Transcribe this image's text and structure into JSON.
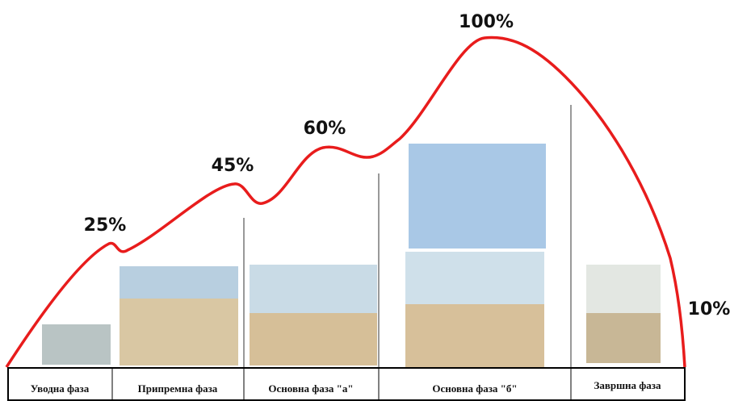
{
  "peaks": [
    {
      "label": "25%"
    },
    {
      "label": "45%"
    },
    {
      "label": "60%"
    },
    {
      "label": "100%"
    },
    {
      "label": "10%"
    }
  ],
  "phases": [
    "Уводна фаза",
    "Припремна фаза",
    "Основна фаза \"а\"",
    "Основна фаза \"б\"",
    "Завршна фаза"
  ]
}
